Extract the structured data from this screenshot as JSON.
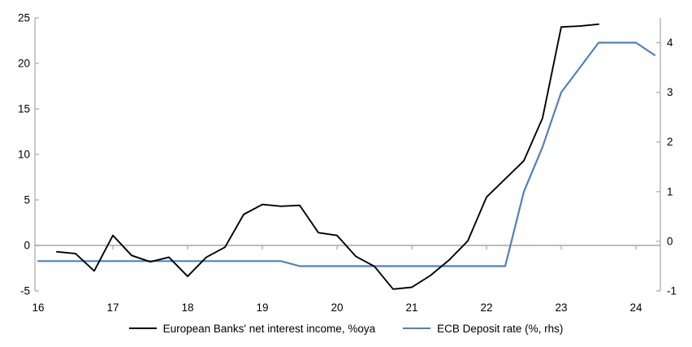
{
  "chart_data": {
    "type": "line",
    "title": "",
    "x_axis": {
      "tick_labels": [
        "16",
        "17",
        "18",
        "19",
        "20",
        "21",
        "22",
        "23",
        "24"
      ],
      "tick_values": [
        16,
        17,
        18,
        19,
        20,
        21,
        22,
        23,
        24
      ],
      "xlim": [
        16,
        24.25
      ]
    },
    "left_axis": {
      "tick_labels": [
        "-5",
        "0",
        "5",
        "10",
        "15",
        "20",
        "25"
      ],
      "ticks": [
        -5,
        0,
        5,
        10,
        15,
        20,
        25
      ],
      "ylim": [
        -5,
        25
      ]
    },
    "right_axis": {
      "tick_labels": [
        "-1",
        "0",
        "1",
        "2",
        "3",
        "4"
      ],
      "ticks": [
        -1,
        0,
        1,
        2,
        3,
        4
      ],
      "ylim": [
        -1,
        4.5
      ]
    },
    "grid": "zero-line-only",
    "legend_position": "bottom-center",
    "series": [
      {
        "name": "European Banks' net interest income, %oya",
        "axis": "left",
        "color": "#000000",
        "stroke_width": 1.9,
        "x_start": 16.25,
        "x_step": 0.25,
        "values": [
          -0.7,
          -0.9,
          -2.8,
          1.1,
          -1.1,
          -1.8,
          -1.3,
          -3.4,
          -1.3,
          -0.2,
          3.4,
          4.5,
          4.3,
          4.4,
          1.4,
          1.1,
          -1.2,
          -2.3,
          -4.8,
          -4.6,
          -3.3,
          -1.6,
          0.5,
          5.3,
          7.3,
          9.3,
          14.0,
          24.0,
          24.1,
          24.3
        ]
      },
      {
        "name": "ECB Deposit rate (%, rhs)",
        "axis": "right",
        "color": "#4f81bd",
        "stroke_width": 2.2,
        "x_start": 16.0,
        "x_step": 0.25,
        "values": [
          -0.4,
          -0.4,
          -0.4,
          -0.4,
          -0.4,
          -0.4,
          -0.4,
          -0.4,
          -0.4,
          -0.4,
          -0.4,
          -0.4,
          -0.4,
          -0.4,
          -0.5,
          -0.5,
          -0.5,
          -0.5,
          -0.5,
          -0.5,
          -0.5,
          -0.5,
          -0.5,
          -0.5,
          -0.5,
          -0.5,
          1.0,
          1.9,
          3.0,
          3.5,
          4.0,
          4.0,
          4.0,
          3.75
        ]
      }
    ],
    "colors": {
      "axis": "#a6a6a6",
      "zero_line": "#a6a6a6",
      "background": "#ffffff"
    }
  }
}
